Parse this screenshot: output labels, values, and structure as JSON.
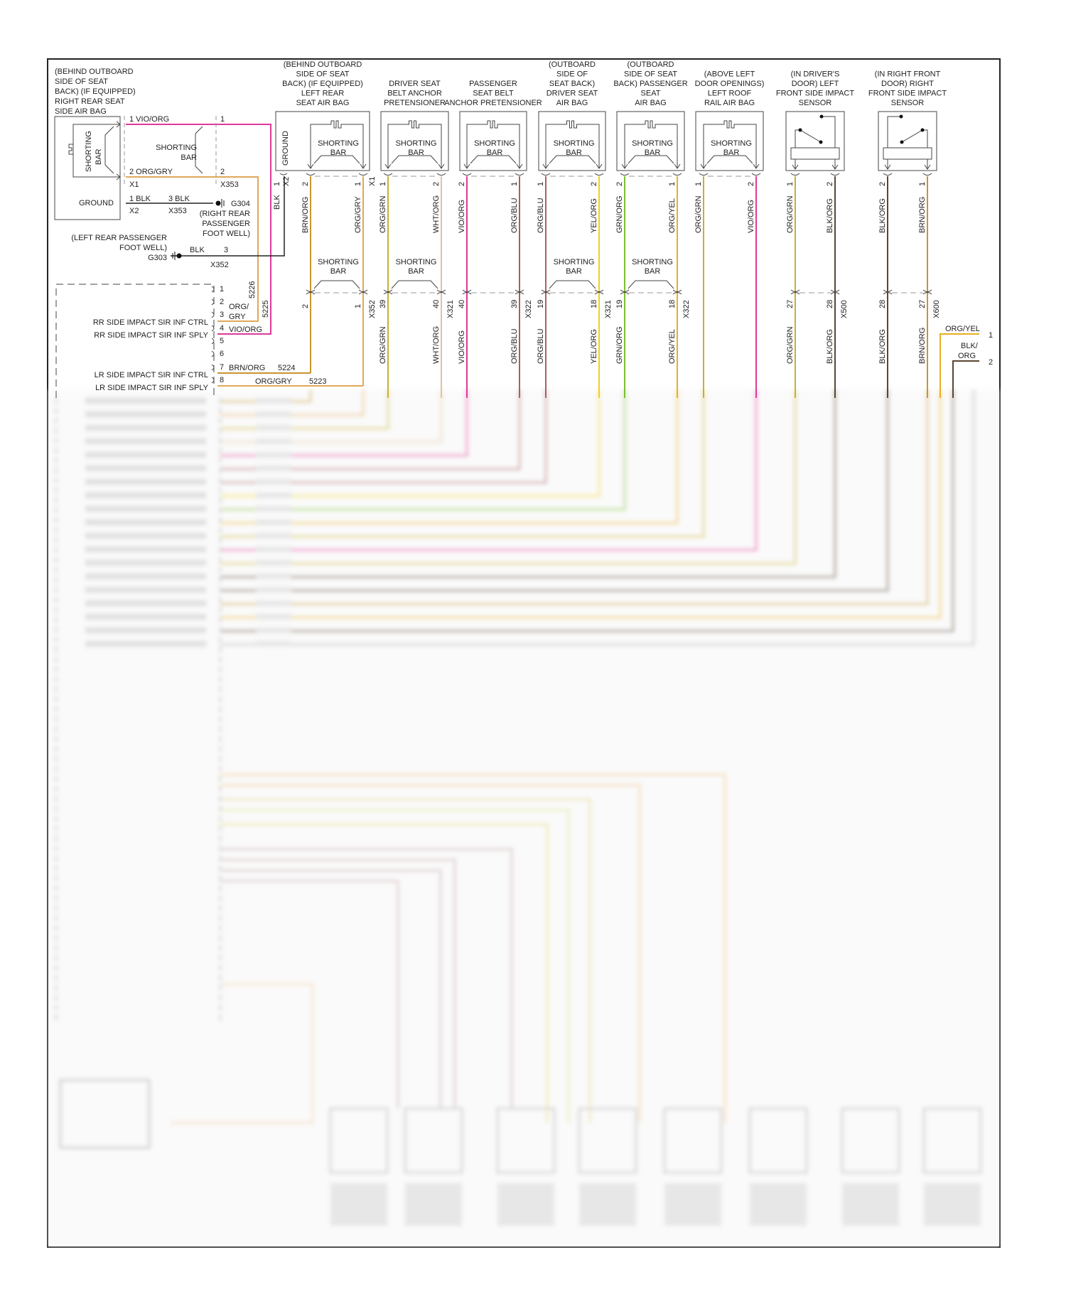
{
  "diagram": {
    "rr_airbag": {
      "title": [
        "(BEHIND OUTBOARD",
        "SIDE OF SEAT",
        "BACK) (IF EQUIPPED)",
        "RIGHT REAR SEAT",
        "SIDE AIR BAG"
      ],
      "shorting_bar": [
        "SHORTING",
        "BAR"
      ],
      "ground": "GROUND",
      "pin1": "1 VIO/ORG",
      "pin2": "2 ORG/GRY",
      "conn_x1": "X1",
      "conn_x2": "X2",
      "gnd_pin": "1 BLK",
      "inline_pin1": "1",
      "inline_pin2": "2",
      "inline_conn": "X353",
      "inline_bar": [
        "SHORTING",
        "BAR"
      ],
      "inline_gnd": "3 BLK",
      "inline_gnd_conn": "X353",
      "g304": "G304",
      "g304_loc": [
        "(RIGHT REAR",
        "PASSENGER",
        "FOOT WELL)"
      ],
      "g303_loc": [
        "(LEFT REAR PASSENGER",
        "FOOT WELL)"
      ],
      "g303": "G303",
      "g303_wire": "BLK",
      "g303_pin": "3",
      "g303_conn": "X352"
    },
    "module": {
      "pins": [
        "1",
        "2",
        "3",
        "4",
        "5",
        "6",
        "7",
        "8"
      ],
      "labels": {
        "rr_ctrl": "RR SIDE IMPACT SIR INF CTRL",
        "rr_sply": "RR SIDE IMPACT SIR INF SPLY",
        "lr_ctrl": "LR SIDE IMPACT SIR INF CTRL",
        "lr_sply": "LR SIDE IMPACT SIR INF SPLY"
      },
      "wires": {
        "p3_color": [
          "ORG/",
          "GRY"
        ],
        "p3_circuit": "5226",
        "p4_color": "VIO/ORG",
        "p4_circuit": "5225",
        "p7_color": "BRN/ORG",
        "p7_circuit": "5224",
        "p8_color": "ORG/GRY",
        "p8_circuit": "5223"
      }
    },
    "components": [
      {
        "title": [
          "(BEHIND OUTBOARD",
          "SIDE OF SEAT",
          "BACK) (IF EQUIPPED)",
          "LEFT REAR",
          "SEAT AIR BAG"
        ],
        "type": "airbag",
        "ground": "GROUND",
        "ground_pin": "1",
        "ground_conn": "X2",
        "ground_wire": "BLK",
        "pins": [
          {
            "num": "2",
            "color": "BRN/ORG",
            "hex": "#c8952e",
            "lower": "2",
            "lower_label": ""
          },
          {
            "num": "1",
            "color": "ORG/GRY",
            "hex": "#e0a85a",
            "lower": "1",
            "lower_label": ""
          }
        ],
        "conn": "X1",
        "lower_conn": "X352",
        "bar": [
          "SHORTING",
          "BAR"
        ],
        "lower_bar": [
          "SHORTING",
          "BAR"
        ]
      },
      {
        "title": [
          "DRIVER SEAT",
          "BELT ANCHOR",
          "PRETENSIONER"
        ],
        "type": "airbag",
        "pins": [
          {
            "num": "1",
            "color": "ORG/GRN",
            "hex": "#c8b030",
            "lower": "39",
            "lower_label": "ORG/GRN"
          },
          {
            "num": "2",
            "color": "WHT/ORG",
            "hex": "#e2c49a",
            "lower": "40",
            "lower_label": "WHT/ORG"
          }
        ],
        "conn": "",
        "lower_conn": "X321",
        "bar": [
          "SHORTING",
          "BAR"
        ],
        "lower_bar": [
          "SHORTING",
          "BAR"
        ]
      },
      {
        "title": [
          "PASSENGER",
          "SEAT BELT",
          "ANCHOR PRETENSIONER"
        ],
        "type": "airbag",
        "pins": [
          {
            "num": "2",
            "color": "VIO/ORG",
            "hex": "#e0399a",
            "lower": "40",
            "lower_label": "VIO/ORG"
          },
          {
            "num": "1",
            "color": "ORG/BLU",
            "hex": "#a86060",
            "lower": "39",
            "lower_label": "ORG/BLU"
          }
        ],
        "conn": "",
        "lower_conn": "X322",
        "bar": [
          "SHORTING",
          "BAR"
        ],
        "lower_bar": []
      },
      {
        "title": [
          "(OUTBOARD",
          "SIDE OF",
          "SEAT BACK)",
          "DRIVER SEAT",
          "AIR BAG"
        ],
        "type": "airbag",
        "pins": [
          {
            "num": "1",
            "color": "ORG/BLU",
            "hex": "#a86060",
            "lower": "19",
            "lower_label": "ORG/BLU"
          },
          {
            "num": "2",
            "color": "YEL/ORG",
            "hex": "#f0d020",
            "lower": "18",
            "lower_label": "YEL/ORG"
          }
        ],
        "conn": "",
        "lower_conn": "X321",
        "bar": [
          "SHORTING",
          "BAR"
        ],
        "lower_bar": [
          "SHORTING",
          "BAR"
        ]
      },
      {
        "title": [
          "(OUTBOARD",
          "SIDE OF SEAT",
          "BACK) PASSENGER",
          "SEAT",
          "AIR BAG"
        ],
        "type": "airbag",
        "pins": [
          {
            "num": "2",
            "color": "GRN/ORG",
            "hex": "#7ac030",
            "lower": "19",
            "lower_label": "GRN/ORG"
          },
          {
            "num": "1",
            "color": "ORG/YEL",
            "hex": "#e8b020",
            "lower": "18",
            "lower_label": "ORG/YEL"
          }
        ],
        "conn": "",
        "lower_conn": "X322",
        "bar": [
          "SHORTING",
          "BAR"
        ],
        "lower_bar": [
          "SHORTING",
          "BAR"
        ]
      },
      {
        "title": [
          "(ABOVE LEFT",
          "DOOR OPENINGS)",
          "LEFT ROOF",
          "RAIL AIR BAG"
        ],
        "type": "airbag",
        "pins": [
          {
            "num": "1",
            "color": "ORG/GRN",
            "hex": "#c8b030",
            "lower": "",
            "lower_label": ""
          },
          {
            "num": "2",
            "color": "VIO/ORG",
            "hex": "#e0399a",
            "lower": "",
            "lower_label": ""
          }
        ],
        "conn": "",
        "lower_conn": "",
        "bar": [
          "SHORTING",
          "BAR"
        ],
        "lower_bar": []
      },
      {
        "title": [
          "(IN DRIVER'S",
          "DOOR) LEFT",
          "FRONT SIDE IMPACT",
          "SENSOR"
        ],
        "type": "sensor",
        "mirror": false,
        "pins": [
          {
            "num": "1",
            "color": "ORG/GRN",
            "hex": "#c8b030",
            "lower": "27",
            "lower_label": "ORG/GRN"
          },
          {
            "num": "2",
            "color": "BLK/ORG",
            "hex": "#5a4530",
            "lower": "28",
            "lower_label": "BLK/ORG"
          }
        ],
        "conn": "",
        "lower_conn": "X500",
        "bar": [],
        "lower_bar": []
      },
      {
        "title": [
          "(IN RIGHT FRONT",
          "DOOR) RIGHT",
          "FRONT SIDE IMPACT",
          "SENSOR"
        ],
        "type": "sensor",
        "mirror": true,
        "pins": [
          {
            "num": "2",
            "color": "BLK/ORG",
            "hex": "#5a4530",
            "lower": "28",
            "lower_label": "BLK/ORG"
          },
          {
            "num": "1",
            "color": "BRN/ORG",
            "hex": "#c8952e",
            "lower": "27",
            "lower_label": "BRN/ORG"
          }
        ],
        "conn": "",
        "lower_conn": "X600",
        "bar": [],
        "lower_bar": []
      }
    ],
    "right_edge": {
      "wire1_color": "ORG/YEL",
      "wire1_pin": "1",
      "wire2_color": [
        "BLK/",
        "ORG"
      ],
      "wire2_pin": "2"
    },
    "colors": {
      "vio_org": "#e0399a",
      "org_gry": "#e0a85a",
      "brn_org": "#c8952e",
      "blk": "#222222",
      "org_yel": "#e8b020",
      "blk_org": "#5a4530"
    }
  }
}
